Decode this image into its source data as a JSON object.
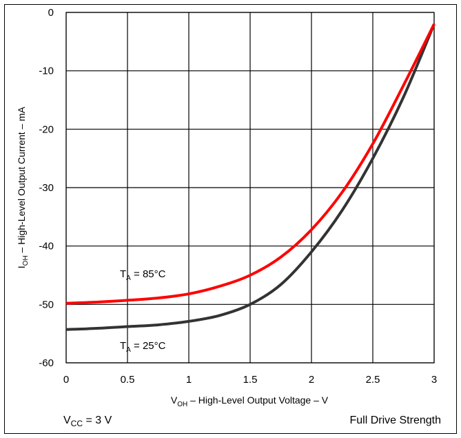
{
  "chart_data": {
    "type": "line",
    "xlabel": {
      "main": "V",
      "sub": "OH",
      "rest": " – High-Level Output Voltage – V"
    },
    "ylabel": {
      "main": "I",
      "sub": "OH",
      "rest": " – High-Level Output Current – mA"
    },
    "xlim": [
      0,
      3
    ],
    "ylim": [
      -60,
      0
    ],
    "x_ticks": [
      "0",
      "0.5",
      "1",
      "1.5",
      "2",
      "2.5",
      "3"
    ],
    "y_ticks": [
      "0",
      "-10",
      "-20",
      "-30",
      "-40",
      "-50",
      "-60"
    ],
    "grid": true,
    "series": [
      {
        "name": "T_A = 85°C",
        "color": "#ff0000",
        "x": [
          0,
          0.25,
          0.5,
          0.75,
          1.0,
          1.25,
          1.5,
          1.75,
          2.0,
          2.25,
          2.5,
          2.75,
          3.0
        ],
        "y": [
          -49.8,
          -49.6,
          -49.3,
          -48.9,
          -48.2,
          -46.9,
          -45.0,
          -41.9,
          -37.2,
          -30.8,
          -22.5,
          -12.5,
          -2.0
        ]
      },
      {
        "name": "T_A = 25°C",
        "color": "#333333",
        "x": [
          0,
          0.25,
          0.5,
          0.75,
          1.0,
          1.25,
          1.5,
          1.75,
          2.0,
          2.25,
          2.5,
          2.75,
          3.0
        ],
        "y": [
          -54.3,
          -54.1,
          -53.8,
          -53.5,
          -52.9,
          -51.9,
          -50.0,
          -46.6,
          -41.0,
          -33.9,
          -25.0,
          -14.5,
          -2.0
        ]
      }
    ],
    "annotations": [
      {
        "id": "ta85",
        "main": "T",
        "sub": "A",
        "rest": " = 85°C"
      },
      {
        "id": "ta25",
        "main": "T",
        "sub": "A",
        "rest": " = 25°C"
      }
    ],
    "footer": {
      "left": {
        "main": "V",
        "sub": "CC",
        "rest": " = 3 V"
      },
      "right": "Full Drive Strength"
    }
  }
}
